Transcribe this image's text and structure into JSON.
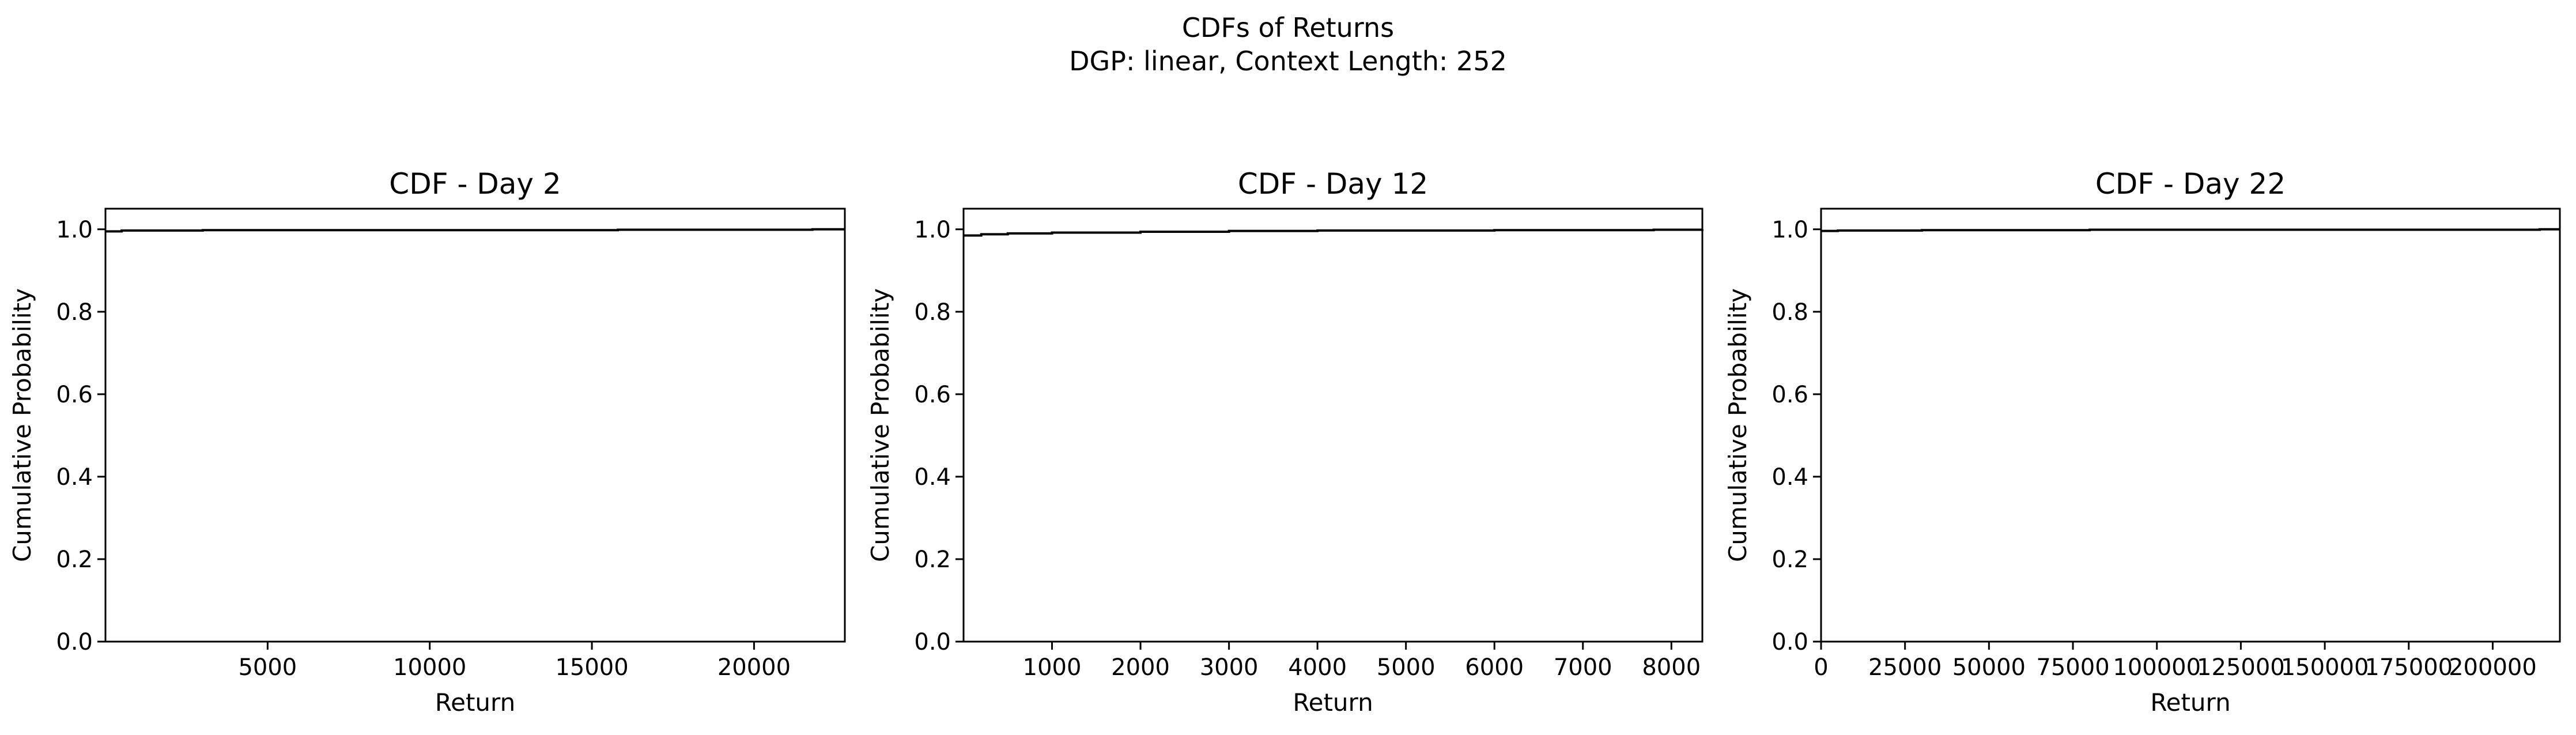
{
  "figure": {
    "title_line1": "CDFs of Returns",
    "title_line2": "DGP: linear, Context Length: 252"
  },
  "chart_data": [
    {
      "type": "line",
      "title": "CDF - Day 2",
      "xlabel": "Return",
      "ylabel": "Cumulative Probability",
      "xlim": [
        0,
        22800
      ],
      "ylim": [
        0,
        1.05
      ],
      "xticks": [
        5000,
        10000,
        15000,
        20000
      ],
      "xtick_labels": [
        "5000",
        "10000",
        "15000",
        "20000"
      ],
      "yticks": [
        0.0,
        0.2,
        0.4,
        0.6,
        0.8,
        1.0
      ],
      "ytick_labels": [
        "0.0",
        "0.2",
        "0.4",
        "0.6",
        "0.8",
        "1.0"
      ],
      "grid": false,
      "line_color": "#000000",
      "series": [
        {
          "x": [
            0,
            500,
            3000,
            8000,
            15800,
            21800,
            22800
          ],
          "y": [
            0.995,
            0.997,
            0.998,
            0.998,
            0.999,
            1.0,
            1.0
          ]
        }
      ]
    },
    {
      "type": "line",
      "title": "CDF - Day 12",
      "xlabel": "Return",
      "ylabel": "Cumulative Probability",
      "xlim": [
        0,
        8350
      ],
      "ylim": [
        0,
        1.05
      ],
      "xticks": [
        1000,
        2000,
        3000,
        4000,
        5000,
        6000,
        7000,
        8000
      ],
      "xtick_labels": [
        "1000",
        "2000",
        "3000",
        "4000",
        "5000",
        "6000",
        "7000",
        "8000"
      ],
      "yticks": [
        0.0,
        0.2,
        0.4,
        0.6,
        0.8,
        1.0
      ],
      "ytick_labels": [
        "0.0",
        "0.2",
        "0.4",
        "0.6",
        "0.8",
        "1.0"
      ],
      "grid": false,
      "line_color": "#000000",
      "series": [
        {
          "x": [
            0,
            200,
            500,
            1000,
            2000,
            3000,
            4000,
            6000,
            7800,
            8350
          ],
          "y": [
            0.985,
            0.988,
            0.99,
            0.992,
            0.994,
            0.996,
            0.997,
            0.998,
            0.999,
            1.0
          ]
        }
      ]
    },
    {
      "type": "line",
      "title": "CDF - Day 22",
      "xlabel": "Return",
      "ylabel": "Cumulative Probability",
      "xlim": [
        0,
        220000
      ],
      "ylim": [
        0,
        1.05
      ],
      "xticks": [
        0,
        25000,
        50000,
        75000,
        100000,
        125000,
        150000,
        175000,
        200000
      ],
      "xtick_labels": [
        "0",
        "25000",
        "50000",
        "75000",
        "100000",
        "125000",
        "150000",
        "175000",
        "200000"
      ],
      "yticks": [
        0.0,
        0.2,
        0.4,
        0.6,
        0.8,
        1.0
      ],
      "ytick_labels": [
        "0.0",
        "0.2",
        "0.4",
        "0.6",
        "0.8",
        "1.0"
      ],
      "grid": false,
      "line_color": "#000000",
      "series": [
        {
          "x": [
            0,
            5000,
            30000,
            80000,
            150000,
            214000,
            220000
          ],
          "y": [
            0.996,
            0.997,
            0.998,
            0.999,
            0.999,
            1.0,
            1.0
          ]
        }
      ]
    }
  ]
}
